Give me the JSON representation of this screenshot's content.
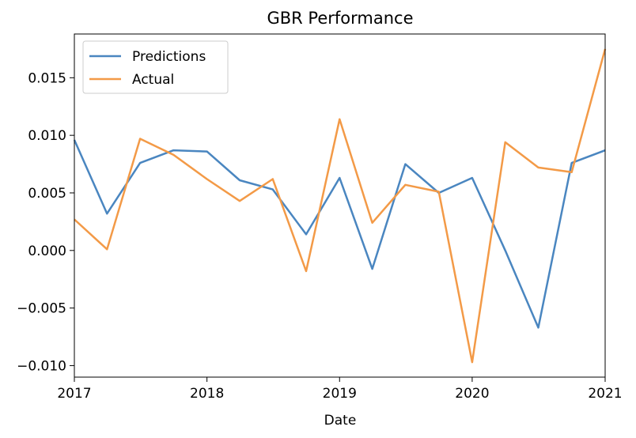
{
  "chart_data": {
    "type": "line",
    "title": "GBR Performance",
    "xlabel": "Date",
    "ylabel": "",
    "xlim": [
      "2017-01-01",
      "2021-01-01"
    ],
    "ylim": [
      -0.011,
      0.0188
    ],
    "xticks": [
      "2017",
      "2018",
      "2019",
      "2020",
      "2021"
    ],
    "yticks": [
      "0.015",
      "0.010",
      "0.005",
      "0.000",
      "-0.005",
      "-0.010"
    ],
    "grid": false,
    "legend": "top-left",
    "x": [
      "2017-01-01",
      "2017-04-01",
      "2017-07-01",
      "2017-10-01",
      "2018-01-01",
      "2018-04-01",
      "2018-07-01",
      "2018-10-01",
      "2019-01-01",
      "2019-04-01",
      "2019-07-01",
      "2019-10-01",
      "2020-01-01",
      "2020-04-01",
      "2020-07-01",
      "2020-10-01",
      "2021-01-01"
    ],
    "series": [
      {
        "name": "Predictions",
        "color": "#4a86c0",
        "values": [
          0.0096,
          0.0032,
          0.0076,
          0.0087,
          0.0086,
          0.0061,
          0.0053,
          0.0014,
          0.0063,
          -0.0016,
          0.0075,
          0.005,
          0.0063,
          0.0,
          -0.0067,
          0.0076,
          0.0087
        ]
      },
      {
        "name": "Actual",
        "color": "#f39a47",
        "values": [
          0.0027,
          0.0001,
          0.0097,
          0.0083,
          0.0062,
          0.0043,
          0.0062,
          -0.0018,
          0.0114,
          0.0024,
          0.0057,
          0.0051,
          -0.0097,
          0.0094,
          0.0072,
          0.0068,
          0.0175
        ]
      }
    ]
  }
}
